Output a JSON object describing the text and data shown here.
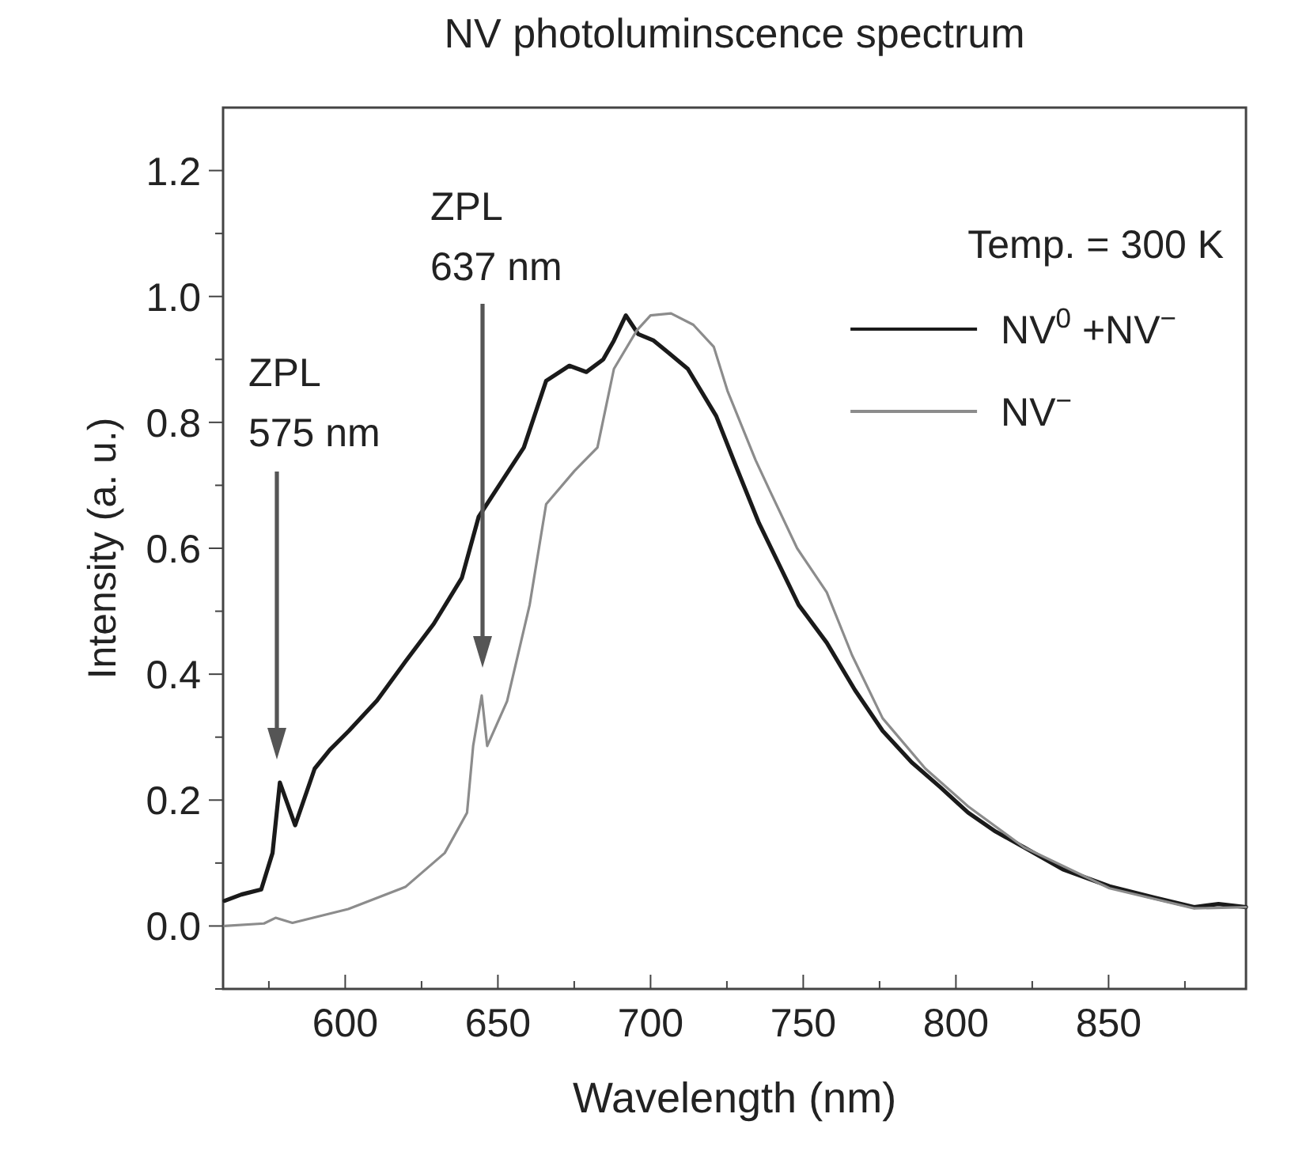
{
  "chart_data": {
    "type": "line",
    "title": "NV photoluminscence spectrum",
    "xlabel": "Wavelength (nm)",
    "ylabel": "Intensity (a. u.)",
    "xlim": [
      560,
      895
    ],
    "ylim": [
      -0.1,
      1.3
    ],
    "xticks": [
      {
        "value": 575,
        "label": null
      },
      600,
      {
        "value": 625,
        "label": null
      },
      650,
      {
        "value": 675,
        "label": null
      },
      700,
      {
        "value": 725,
        "label": null
      },
      750,
      {
        "value": 775,
        "label": null
      },
      800,
      {
        "value": 825,
        "label": null
      },
      850,
      {
        "value": 875,
        "label": null
      }
    ],
    "yticks": [
      {
        "value": -0.1,
        "label": null
      },
      {
        "value": 0,
        "label": "0.0"
      },
      {
        "value": 0.1,
        "label": null
      },
      0.2,
      {
        "value": 0.3,
        "label": null
      },
      0.4,
      {
        "value": 0.5,
        "label": null
      },
      0.6,
      {
        "value": 0.7,
        "label": null
      },
      0.8,
      {
        "value": 0.9,
        "label": null
      },
      {
        "value": 1.0,
        "label": "1.0"
      },
      {
        "value": 1.1,
        "label": null
      },
      1.2
    ],
    "grid": false,
    "legend": "right",
    "marker": "none",
    "line_style": "solid",
    "series": [
      {
        "name": "NV$^{0}$ +NV$^{−}$",
        "color": "#1a1a1a",
        "x": [
          560.5,
          566,
          572.5,
          576.2,
          578.6,
          583.6,
          590,
          595,
          601.2,
          610.4,
          619.7,
          629,
          638.2,
          643.7,
          651.1,
          658.5,
          665.8,
          673.4,
          679,
          684.5,
          688,
          691.9,
          696,
          701,
          706,
          712.2,
          721.5,
          728,
          735.5,
          748.5,
          757.7,
          766.9,
          776,
          785.5,
          795,
          804,
          813,
          822.3,
          835,
          850.3,
          865,
          878,
          886,
          895
        ],
        "values": [
          0.04,
          0.05,
          0.058,
          0.116,
          0.228,
          0.16,
          0.25,
          0.28,
          0.31,
          0.358,
          0.42,
          0.48,
          0.553,
          0.65,
          0.705,
          0.76,
          0.866,
          0.89,
          0.88,
          0.9,
          0.93,
          0.97,
          0.94,
          0.93,
          0.91,
          0.885,
          0.81,
          0.73,
          0.64,
          0.51,
          0.45,
          0.375,
          0.31,
          0.26,
          0.22,
          0.18,
          0.15,
          0.125,
          0.09,
          0.063,
          0.045,
          0.03,
          0.035,
          0.03
        ]
      },
      {
        "name": "NV$^{−}$",
        "color": "#8c8c8c",
        "x": [
          560.5,
          573.4,
          577.2,
          582.7,
          601,
          619.7,
          632.6,
          639.9,
          641.9,
          644.7,
          646.5,
          653,
          660.4,
          665.8,
          675.1,
          682.6,
          688,
          695.5,
          700,
          706.7,
          714,
          720.7,
          725.2,
          734.4,
          739.2,
          748,
          757.7,
          766,
          776,
          790,
          804,
          822.3,
          850.3,
          878,
          895
        ],
        "values": [
          0.0,
          0.004,
          0.013,
          0.005,
          0.027,
          0.062,
          0.116,
          0.18,
          0.286,
          0.366,
          0.286,
          0.357,
          0.51,
          0.67,
          0.723,
          0.76,
          0.885,
          0.946,
          0.97,
          0.973,
          0.955,
          0.92,
          0.85,
          0.74,
          0.69,
          0.6,
          0.53,
          0.43,
          0.33,
          0.25,
          0.19,
          0.125,
          0.06,
          0.028,
          0.03
        ]
      }
    ],
    "annotations": [
      "ZPL\n575 nm",
      "ZPL\n637 nm",
      "Temp. = 300 K"
    ]
  }
}
